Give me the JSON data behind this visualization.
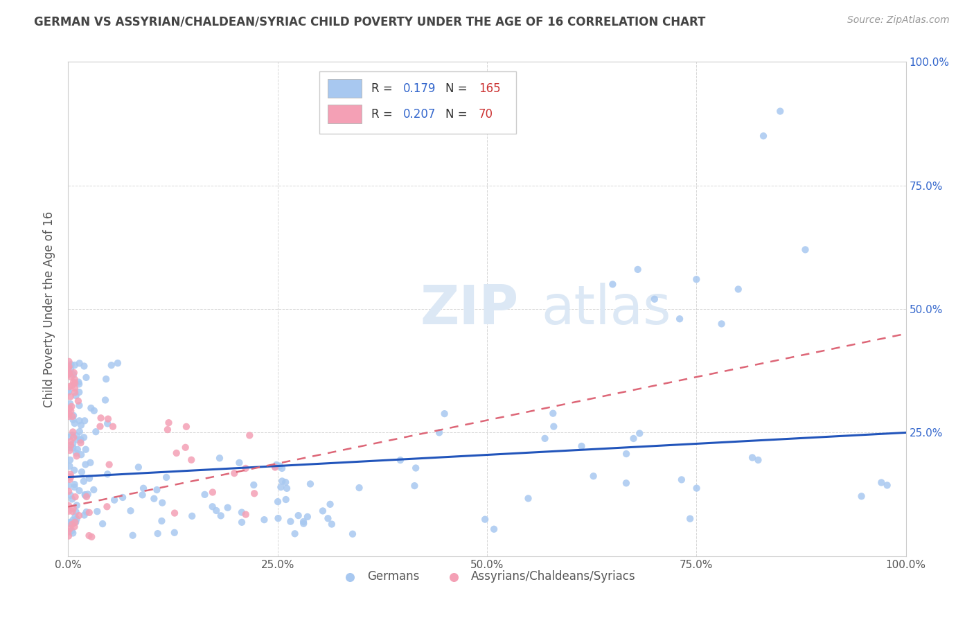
{
  "title": "GERMAN VS ASSYRIAN/CHALDEAN/SYRIAC CHILD POVERTY UNDER THE AGE OF 16 CORRELATION CHART",
  "source": "Source: ZipAtlas.com",
  "ylabel": "Child Poverty Under the Age of 16",
  "bg_color": "#ffffff",
  "plot_bg_color": "#ffffff",
  "grid_color": "#cccccc",
  "german_color": "#a8c8f0",
  "assyrian_color": "#f4a0b5",
  "german_line_color": "#2255bb",
  "assyrian_line_color": "#dd6677",
  "title_color": "#444444",
  "legend_r_color": "#3366cc",
  "legend_n_color": "#cc3333",
  "ytick_color": "#3366cc",
  "german_R": 0.179,
  "german_N": 165,
  "assyrian_R": 0.207,
  "assyrian_N": 70,
  "xlim": [
    0,
    1.0
  ],
  "ylim": [
    0,
    1.0
  ],
  "xtick_labels": [
    "0.0%",
    "25.0%",
    "50.0%",
    "75.0%",
    "100.0%"
  ],
  "xtick_vals": [
    0,
    0.25,
    0.5,
    0.75,
    1.0
  ],
  "ytick_labels": [
    "25.0%",
    "50.0%",
    "75.0%",
    "100.0%"
  ],
  "ytick_vals": [
    0.25,
    0.5,
    0.75,
    1.0
  ],
  "watermark": "ZIPatlas",
  "bottom_legend_labels": [
    "Germans",
    "Assyrians/Chaldeans/Syriacs"
  ]
}
